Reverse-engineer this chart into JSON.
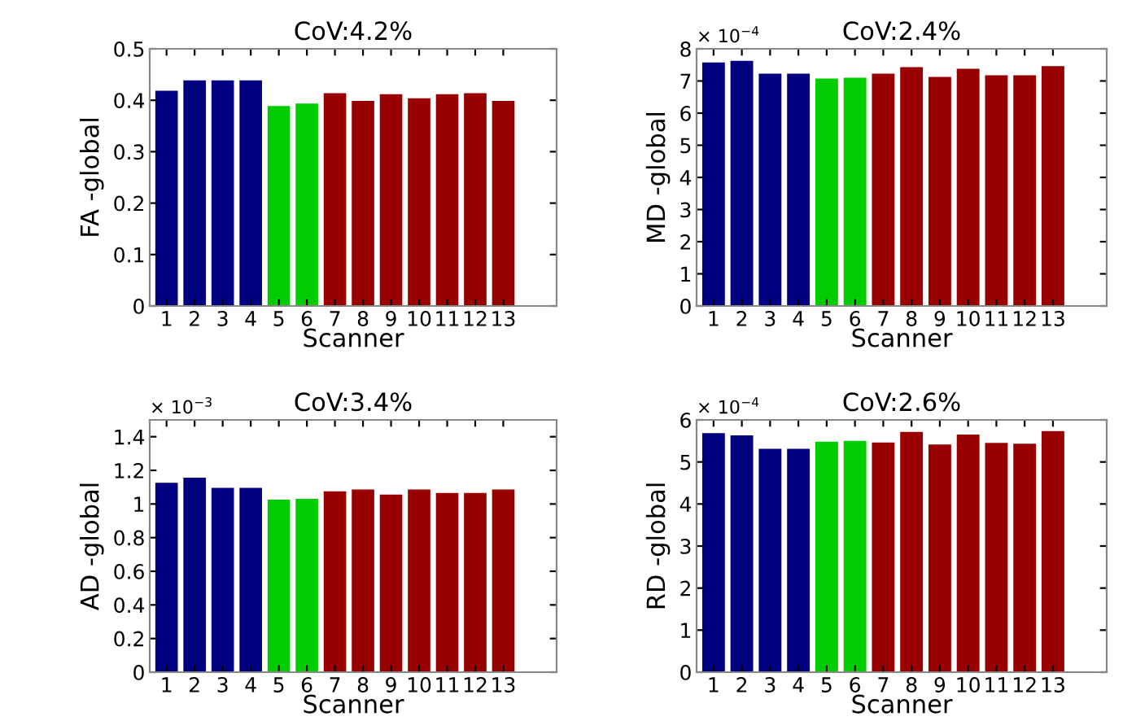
{
  "chart_data": [
    {
      "type": "bar",
      "title": "CoV:4.2%",
      "xlabel": "Scanner",
      "ylabel": "FA -global",
      "categories": [
        "1",
        "2",
        "3",
        "4",
        "5",
        "6",
        "7",
        "8",
        "9",
        "10",
        "11",
        "12",
        "13"
      ],
      "values": [
        0.42,
        0.44,
        0.44,
        0.44,
        0.39,
        0.395,
        0.415,
        0.4,
        0.413,
        0.405,
        0.413,
        0.415,
        0.4
      ],
      "colors": [
        "#000080",
        "#000080",
        "#000080",
        "#000080",
        "#00cc00",
        "#00cc00",
        "#990000",
        "#990000",
        "#990000",
        "#990000",
        "#990000",
        "#990000",
        "#990000"
      ],
      "ylim": [
        0,
        0.5
      ],
      "yticks": [
        0,
        0.1,
        0.2,
        0.3,
        0.4,
        0.5
      ],
      "grid": false,
      "legend": false
    },
    {
      "type": "bar",
      "title": "CoV:2.4%",
      "xlabel": "Scanner",
      "ylabel": "MD -global",
      "annotations": [
        "× 10$^{−4}$"
      ],
      "categories": [
        "1",
        "2",
        "3",
        "4",
        "5",
        "6",
        "7",
        "8",
        "9",
        "10",
        "11",
        "12",
        "13"
      ],
      "values": [
        7.6,
        7.65,
        7.25,
        7.25,
        7.1,
        7.12,
        7.25,
        7.45,
        7.15,
        7.4,
        7.2,
        7.2,
        7.48
      ],
      "colors": [
        "#000080",
        "#000080",
        "#000080",
        "#000080",
        "#00cc00",
        "#00cc00",
        "#990000",
        "#990000",
        "#990000",
        "#990000",
        "#990000",
        "#990000",
        "#990000"
      ],
      "ylim": [
        0,
        8
      ],
      "yticks": [
        0,
        1,
        2,
        3,
        4,
        5,
        6,
        7,
        8
      ],
      "grid": false,
      "legend": false
    },
    {
      "type": "bar",
      "title": "CoV:3.4%",
      "xlabel": "Scanner",
      "ylabel": "AD -global",
      "annotations": [
        "× 10$^{−3}$"
      ],
      "categories": [
        "1",
        "2",
        "3",
        "4",
        "5",
        "6",
        "7",
        "8",
        "9",
        "10",
        "11",
        "12",
        "13"
      ],
      "values": [
        1.13,
        1.16,
        1.1,
        1.1,
        1.03,
        1.035,
        1.08,
        1.09,
        1.06,
        1.09,
        1.07,
        1.07,
        1.09
      ],
      "colors": [
        "#000080",
        "#000080",
        "#000080",
        "#000080",
        "#00cc00",
        "#00cc00",
        "#990000",
        "#990000",
        "#990000",
        "#990000",
        "#990000",
        "#990000",
        "#990000"
      ],
      "ylim": [
        0,
        1.5
      ],
      "yticks": [
        0,
        0.2,
        0.4,
        0.6,
        0.8,
        1,
        1.2,
        1.4
      ],
      "grid": false,
      "legend": false
    },
    {
      "type": "bar",
      "title": "CoV:2.6%",
      "xlabel": "Scanner",
      "ylabel": "RD -global",
      "annotations": [
        "× 10$^{−4}$"
      ],
      "categories": [
        "1",
        "2",
        "3",
        "4",
        "5",
        "6",
        "7",
        "8",
        "9",
        "10",
        "11",
        "12",
        "13"
      ],
      "values": [
        5.7,
        5.65,
        5.33,
        5.33,
        5.5,
        5.52,
        5.48,
        5.73,
        5.43,
        5.67,
        5.47,
        5.45,
        5.75
      ],
      "colors": [
        "#000080",
        "#000080",
        "#000080",
        "#000080",
        "#00cc00",
        "#00cc00",
        "#990000",
        "#990000",
        "#990000",
        "#990000",
        "#990000",
        "#990000",
        "#990000"
      ],
      "ylim": [
        0,
        6
      ],
      "yticks": [
        0,
        1,
        2,
        3,
        4,
        5,
        6
      ],
      "grid": false,
      "legend": false
    }
  ]
}
